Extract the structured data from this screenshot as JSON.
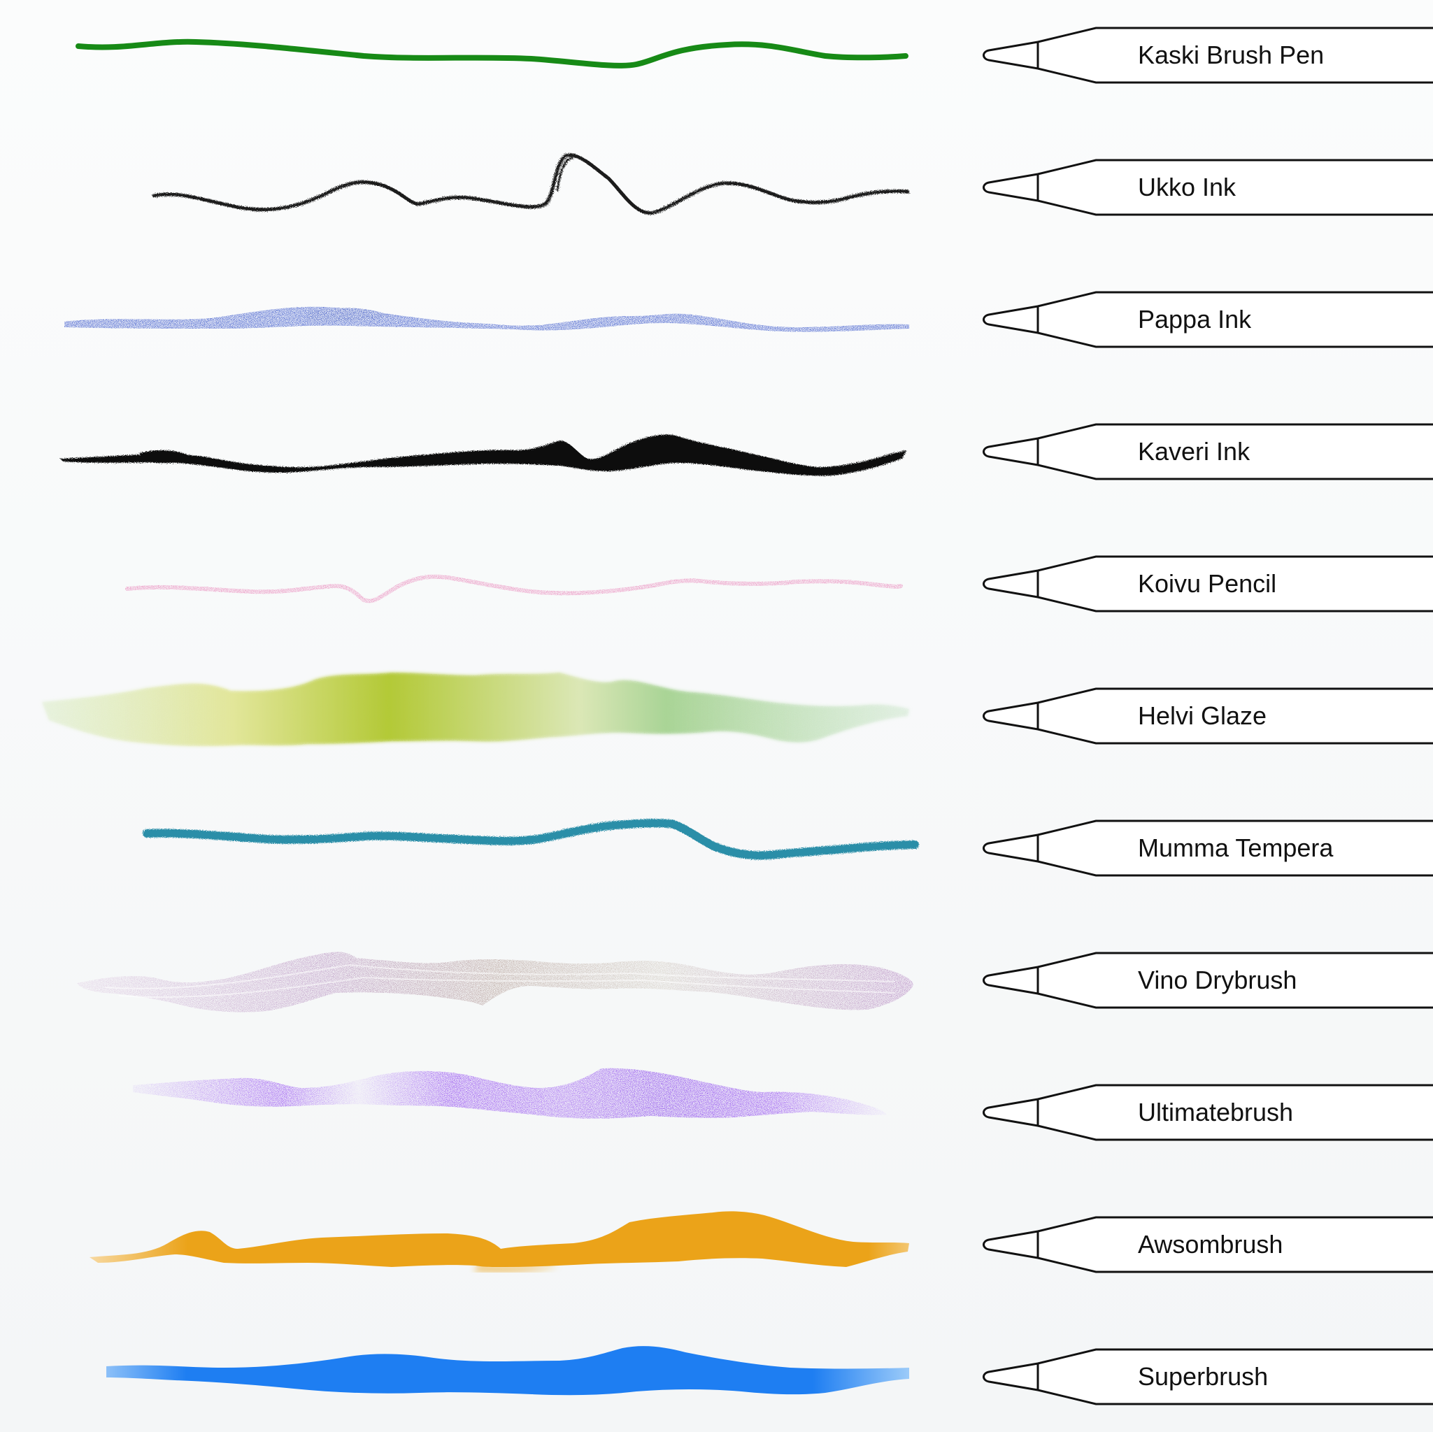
{
  "brushes": [
    {
      "name": "Kaski Brush Pen",
      "color": "#178a16",
      "style": "pen"
    },
    {
      "name": "Ukko Ink",
      "color": "#1a1a1a",
      "style": "ink-line"
    },
    {
      "name": "Pappa Ink",
      "color": "#1f3fc4",
      "style": "dry-ink"
    },
    {
      "name": "Kaveri Ink",
      "color": "#0d0d0d",
      "style": "ink-blot"
    },
    {
      "name": "Koivu Pencil",
      "color": "#e66fad",
      "style": "pencil"
    },
    {
      "name": "Helvi Glaze",
      "colors": [
        "#dfe9a6",
        "#c8d74a",
        "#a9c631",
        "#9cd18e",
        "#cfe8cd"
      ],
      "style": "glaze"
    },
    {
      "name": "Mumma Tempera",
      "color": "#2c8ea8",
      "style": "tempera"
    },
    {
      "name": "Vino Drybrush",
      "colors": [
        "#d9c7dc",
        "#a67fb1",
        "#c4bfae",
        "#b78fc0"
      ],
      "style": "drybrush"
    },
    {
      "name": "Ultimatebrush",
      "colors": [
        "#8a3cf0",
        "#d8c7f7",
        "#7d35ec"
      ],
      "style": "rough"
    },
    {
      "name": "Awsombrush",
      "color": "#eba319",
      "style": "soft"
    },
    {
      "name": "Superbrush",
      "color": "#1e7ef2",
      "style": "broad"
    }
  ]
}
